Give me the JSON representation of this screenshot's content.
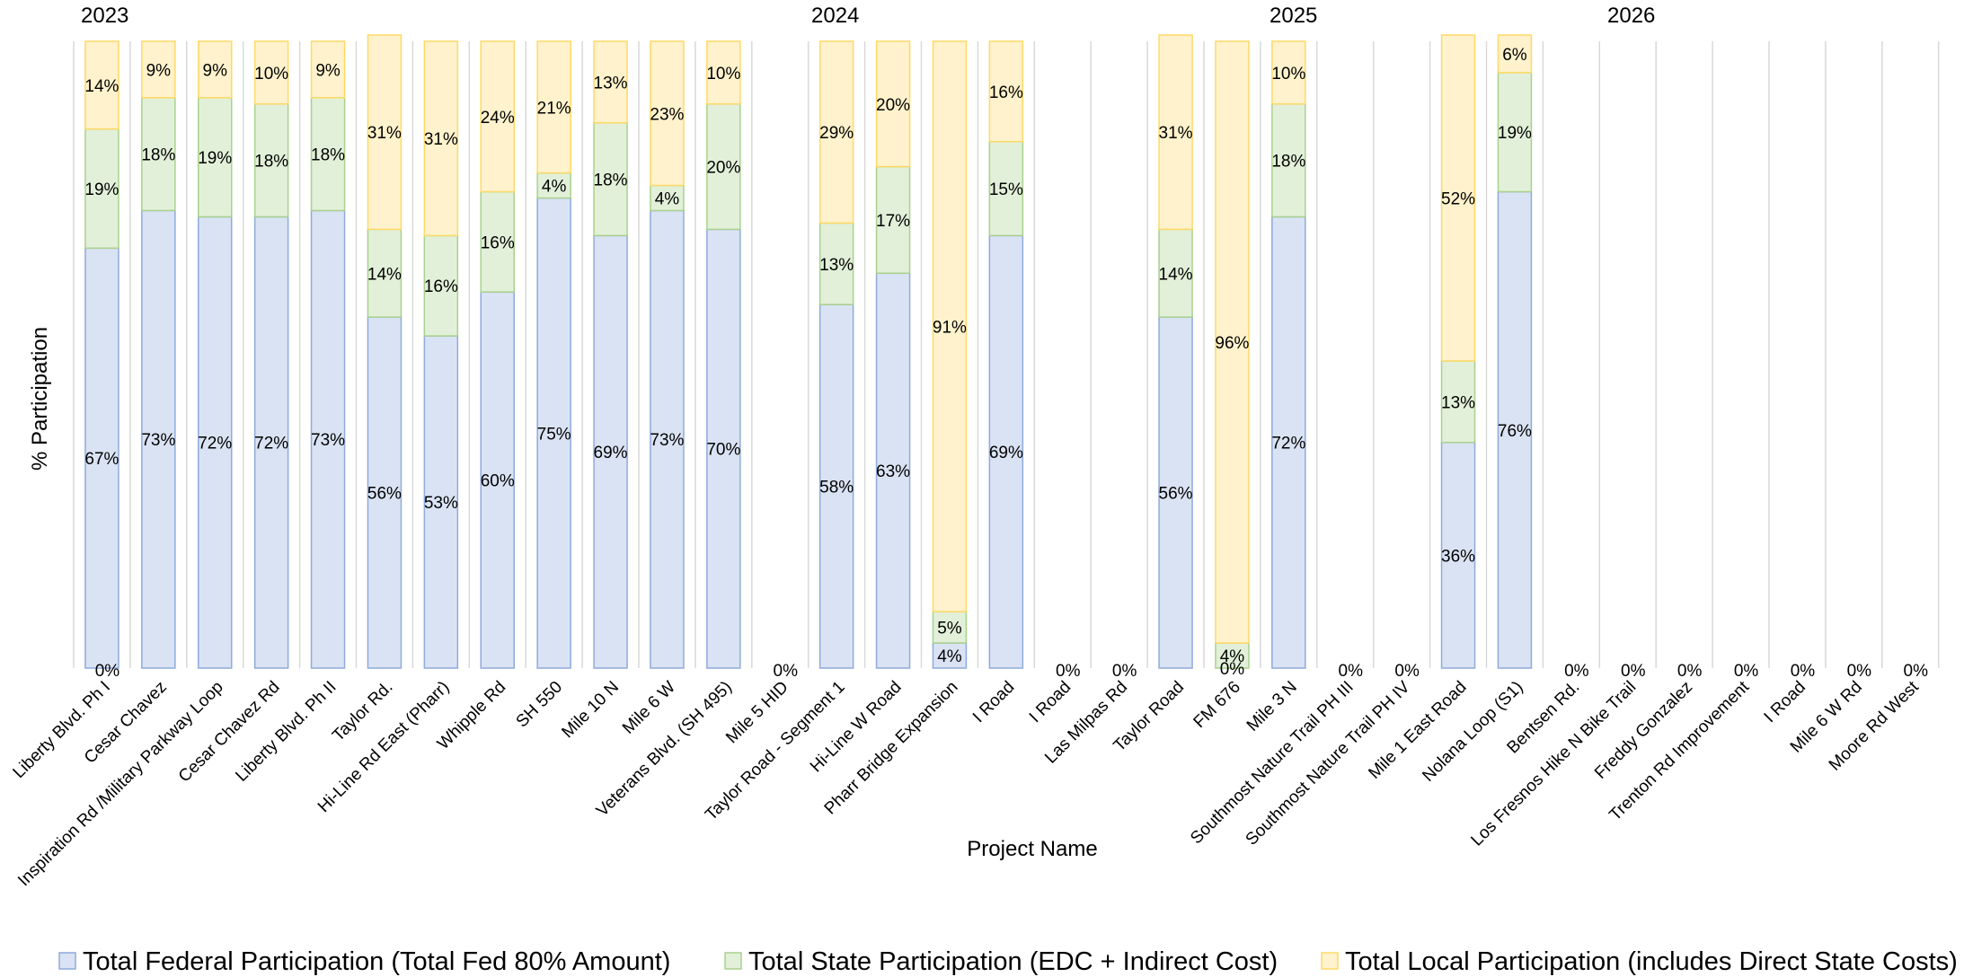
{
  "chart_data": {
    "type": "bar",
    "stacked": true,
    "percent_stacked": true,
    "xlabel": "Project Name",
    "ylabel": "% Participation",
    "ylim": [
      0,
      1
    ],
    "grid": false,
    "legend_position": "bottom",
    "groups": [
      {
        "label": "2023",
        "start": 0
      },
      {
        "label": "2024",
        "start": 13
      },
      {
        "label": "2025",
        "start": 19
      },
      {
        "label": "2026",
        "start": 25
      }
    ],
    "categories": [
      "Liberty Blvd. Ph I",
      "Cesar Chavez",
      "Inspiration Rd /Military Parkway Loop",
      "Cesar Chavez Rd",
      "Liberty Blvd. Ph II",
      "Taylor Rd.",
      "Hi-Line Rd East (Pharr)",
      "Whipple Rd",
      "SH 550",
      "Mile 10 N",
      "Mile 6 W",
      "Veterans Blvd. (SH 495)",
      "Mile 5 HID",
      "Taylor Road - Segment 1",
      "Hi-Line W Road",
      "Pharr Bridge Expansion",
      "I Road",
      "I Road",
      "Las Milpas Rd",
      "Taylor Road",
      "FM 676",
      "Mile 3 N",
      "Southmost Nature Trail PH III",
      "Southmost Nature Trail PH IV",
      "Mile 1 East Road",
      "Nolana Loop (S1)",
      "Bentsen Rd.",
      "Los Fresnos Hike N Bike Trail",
      "Freddy Gonzalez",
      "Trenton Rd Improvement",
      "I Road",
      "Mile 6 W Rd",
      "Moore Rd West"
    ],
    "series": [
      {
        "name": "Total Federal Participation (Total Fed 80% Amount)",
        "color": "#dae3f3",
        "edge": "#8faadc",
        "values": [
          0.67,
          0.73,
          0.72,
          0.72,
          0.73,
          0.56,
          0.53,
          0.6,
          0.75,
          0.69,
          0.73,
          0.7,
          0,
          0.58,
          0.63,
          0.04,
          0.69,
          0,
          0,
          0.56,
          0,
          0.72,
          0,
          0,
          0.36,
          0.76,
          0,
          0,
          0,
          0,
          0,
          0,
          0
        ],
        "labels": [
          "67%",
          "73%",
          "72%",
          "72%",
          "73%",
          "56%",
          "53%",
          "60%",
          "75%",
          "69%",
          "73%",
          "70%",
          "",
          "58%",
          "63%",
          "4%",
          "69%",
          "",
          "",
          "56%",
          "0%",
          "72%",
          "",
          "",
          "36%",
          "76%",
          "",
          "",
          "",
          "",
          "",
          "",
          ""
        ]
      },
      {
        "name": "Total State Participation (EDC + Indirect Cost)",
        "color": "#e2f0d9",
        "edge": "#a9d18e",
        "values": [
          0.19,
          0.18,
          0.19,
          0.18,
          0.18,
          0.14,
          0.16,
          0.16,
          0.04,
          0.18,
          0.04,
          0.2,
          0,
          0.13,
          0.17,
          0.05,
          0.15,
          0,
          0,
          0.14,
          0.04,
          0.18,
          0,
          0,
          0.13,
          0.19,
          0,
          0,
          0,
          0,
          0,
          0,
          0
        ],
        "labels": [
          "19%",
          "18%",
          "19%",
          "18%",
          "18%",
          "14%",
          "16%",
          "16%",
          "4%",
          "18%",
          "4%",
          "20%",
          "",
          "13%",
          "17%",
          "5%",
          "15%",
          "",
          "",
          "14%",
          "4%",
          "18%",
          "",
          "",
          "13%",
          "19%",
          "",
          "",
          "",
          "",
          "",
          "",
          ""
        ]
      },
      {
        "name": "Total Local Participation (includes Direct State Costs)",
        "color": "#fff2cc",
        "edge": "#ffd966",
        "values": [
          0.14,
          0.09,
          0.09,
          0.1,
          0.09,
          0.31,
          0.31,
          0.24,
          0.21,
          0.13,
          0.23,
          0.1,
          0,
          0.29,
          0.2,
          0.91,
          0.16,
          0,
          0,
          0.31,
          0.96,
          0.1,
          0,
          0,
          0.52,
          0.06,
          0,
          0,
          0,
          0,
          0,
          0,
          0
        ],
        "labels": [
          "14%",
          "9%",
          "9%",
          "10%",
          "9%",
          "31%",
          "31%",
          "24%",
          "21%",
          "13%",
          "23%",
          "10%",
          "",
          "29%",
          "20%",
          "91%",
          "16%",
          "",
          "",
          "31%",
          "96%",
          "10%",
          "",
          "",
          "52%",
          "6%",
          "",
          "",
          "",
          "",
          "",
          "",
          ""
        ]
      }
    ],
    "zero_labels": [
      "0%",
      "",
      "",
      "",
      "",
      "",
      "",
      "",
      "",
      "",
      "",
      "",
      "0%",
      "",
      "",
      "",
      "",
      "0%",
      "0%",
      "",
      "",
      "",
      "0%",
      "0%",
      "",
      "",
      "0%",
      "0%",
      "0%",
      "0%",
      "0%",
      "0%",
      "0%"
    ]
  }
}
